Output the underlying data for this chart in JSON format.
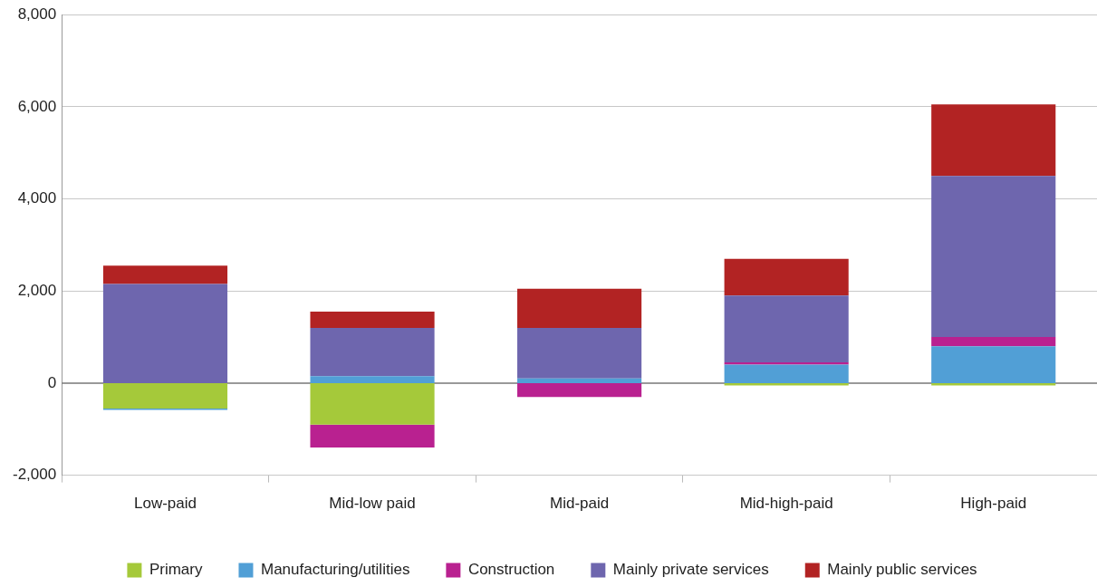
{
  "chart_data": {
    "type": "bar",
    "stacked": true,
    "categories": [
      "Low-paid",
      "Mid-low paid",
      "Mid-paid",
      "Mid-high-paid",
      "High-paid"
    ],
    "series": [
      {
        "name": "Primary",
        "color": "#a5c93a",
        "values": [
          -550,
          -900,
          0,
          -50,
          -50
        ]
      },
      {
        "name": "Manufacturing/utilities",
        "color": "#519fd6",
        "values": [
          -30,
          150,
          100,
          400,
          800
        ]
      },
      {
        "name": "Construction",
        "color": "#b92190",
        "values": [
          0,
          -500,
          -300,
          50,
          200
        ]
      },
      {
        "name": "Mainly private services",
        "color": "#6e66ae",
        "values": [
          2150,
          1050,
          1100,
          1450,
          3500
        ]
      },
      {
        "name": "Mainly public services",
        "color": "#b22323",
        "values": [
          400,
          350,
          850,
          800,
          1550
        ]
      }
    ],
    "ylim": [
      -2000,
      8000
    ],
    "yticks": [
      {
        "value": -2000,
        "label": "-2,000"
      },
      0,
      {
        "value": 2000,
        "label": "2,000"
      },
      {
        "value": 4000,
        "label": "4,000"
      },
      {
        "value": 6000,
        "label": "6,000"
      },
      {
        "value": 8000,
        "label": "8,000"
      }
    ],
    "grid": "y",
    "legend": "bottom"
  }
}
